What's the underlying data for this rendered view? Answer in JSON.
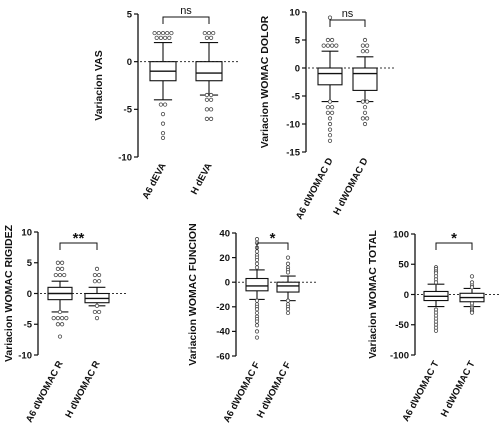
{
  "chart_data": [
    {
      "type": "boxplot",
      "ylabel": "Variacion VAS",
      "ylim": [
        -10,
        5
      ],
      "yticks": [
        -10,
        -5,
        0,
        5
      ],
      "reference_line": 0,
      "significance": "ns",
      "categories": [
        "A6 dEVA",
        "H dEVA"
      ],
      "boxes": [
        {
          "whisker_low": -4,
          "q1": -2,
          "median": -1,
          "q3": 0,
          "whisker_high": 2,
          "outliers": [
            3,
            3,
            3,
            3,
            3,
            2.5,
            2.5,
            2.5,
            2.5,
            -4.5,
            -4.5,
            -5.5,
            -6.5,
            -7.5,
            -8
          ]
        },
        {
          "whisker_low": -3.5,
          "q1": -2,
          "median": -1.2,
          "q3": 0,
          "whisker_high": 2,
          "outliers": [
            3,
            3,
            3,
            2.5,
            2.5,
            -3.5,
            -3.5,
            -4,
            -4,
            -5,
            -5,
            -6,
            -6
          ]
        }
      ]
    },
    {
      "type": "boxplot",
      "ylabel": "Variacion WOMAC DOLOR",
      "ylim": [
        -15,
        10
      ],
      "yticks": [
        -15,
        -10,
        -5,
        0,
        5,
        10
      ],
      "reference_line": 0,
      "significance": "ns",
      "categories": [
        "A6 dWOMAC D",
        "H dWOMAC D"
      ],
      "boxes": [
        {
          "whisker_low": -6,
          "q1": -3,
          "median": -1,
          "q3": 0,
          "whisker_high": 3,
          "outliers": [
            9,
            5,
            5,
            4,
            4,
            4,
            4,
            -6,
            -7,
            -7,
            -8,
            -8,
            -9,
            -10,
            -11,
            -12,
            -13
          ]
        },
        {
          "whisker_low": -6,
          "q1": -4,
          "median": -1,
          "q3": 0,
          "whisker_high": 2,
          "outliers": [
            5,
            4,
            4,
            3,
            3,
            -6,
            -6,
            -7,
            -8,
            -9,
            -9,
            -10
          ]
        }
      ]
    },
    {
      "type": "boxplot",
      "ylabel": "Variacion WOMAC RIGIDEZ",
      "ylim": [
        -10,
        10
      ],
      "yticks": [
        -10,
        -5,
        0,
        5,
        10
      ],
      "reference_line": 0,
      "significance": "**",
      "categories": [
        "A6 dWOMAC R",
        "H dWOMAC R"
      ],
      "boxes": [
        {
          "whisker_low": -3,
          "q1": -1,
          "median": 0,
          "q3": 1,
          "whisker_high": 2,
          "outliers": [
            5,
            5,
            4,
            4,
            3,
            3,
            3,
            -3,
            -4,
            -4,
            -4,
            -4,
            -5,
            -5,
            -7
          ]
        },
        {
          "whisker_low": -2,
          "q1": -1.5,
          "median": -0.8,
          "q3": 0,
          "whisker_high": 1,
          "outliers": [
            4,
            3,
            3,
            2,
            2,
            -2,
            -3,
            -3,
            -4
          ]
        }
      ]
    },
    {
      "type": "boxplot",
      "ylabel": "Variacion WOMAC FUNCION",
      "ylim": [
        -60,
        40
      ],
      "yticks": [
        -60,
        -40,
        -20,
        0,
        20,
        40
      ],
      "reference_line": 0,
      "significance": "*",
      "categories": [
        "A6 dWOMAC F",
        "H dWOMAC F"
      ],
      "boxes": [
        {
          "whisker_low": -14,
          "q1": -7,
          "median": -3,
          "q3": 3,
          "whisker_high": 10,
          "outliers": [
            35,
            32,
            28,
            25,
            22,
            20,
            18,
            15,
            12,
            -15,
            -18,
            -20,
            -22,
            -25,
            -28,
            -30,
            -32,
            -35,
            -40,
            -45
          ]
        },
        {
          "whisker_low": -15,
          "q1": -8,
          "median": -3,
          "q3": 0,
          "whisker_high": 5,
          "outliers": [
            20,
            15,
            12,
            10,
            8,
            -15,
            -18,
            -20,
            -22,
            -25
          ]
        }
      ]
    },
    {
      "type": "boxplot",
      "ylabel": "Variacion WOMAC TOTAL",
      "ylim": [
        -100,
        100
      ],
      "yticks": [
        -100,
        -50,
        0,
        50,
        100
      ],
      "reference_line": 0,
      "significance": "*",
      "categories": [
        "A6 dWOMAC T",
        "H dWOMAC T"
      ],
      "boxes": [
        {
          "whisker_low": -20,
          "q1": -10,
          "median": -3,
          "q3": 5,
          "whisker_high": 17,
          "outliers": [
            45,
            42,
            38,
            35,
            30,
            25,
            20,
            -25,
            -30,
            -35,
            -40,
            -45,
            -50,
            -55,
            -60
          ]
        },
        {
          "whisker_low": -20,
          "q1": -12,
          "median": -5,
          "q3": 2,
          "whisker_high": 10,
          "outliers": [
            30,
            20,
            15,
            12,
            -15,
            -20,
            -22,
            -25,
            -28,
            -30
          ]
        }
      ]
    }
  ]
}
